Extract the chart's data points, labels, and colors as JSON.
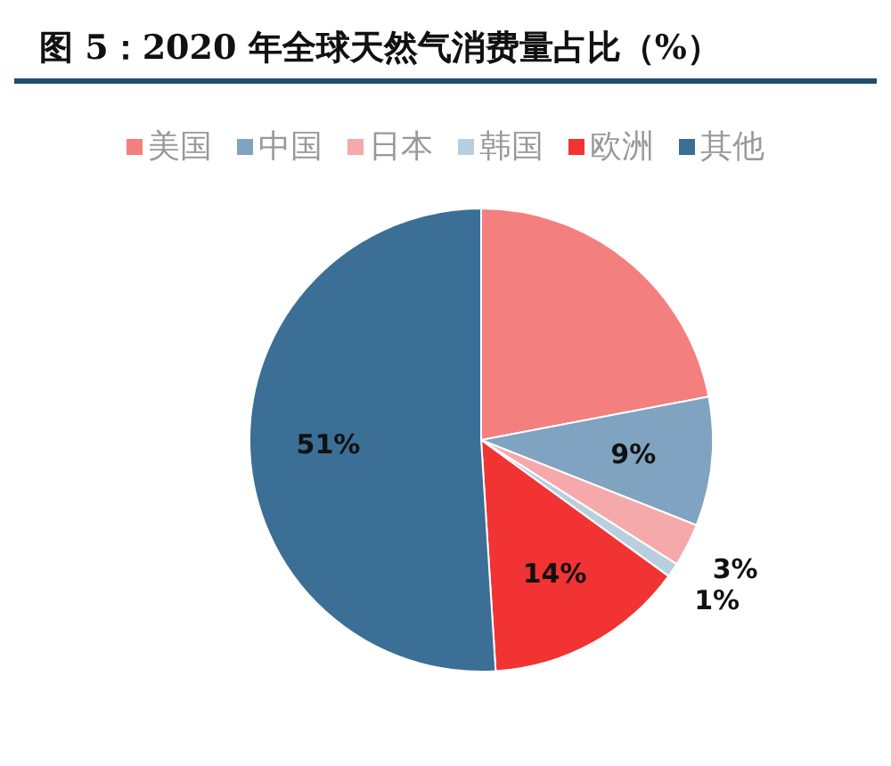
{
  "chart_data": {
    "type": "pie",
    "title": "图 5：2020 年全球天然气消费量占比（%）",
    "categories": [
      "美国",
      "中国",
      "日本",
      "韩国",
      "欧洲",
      "其他"
    ],
    "values": [
      22,
      9,
      3,
      1,
      14,
      51
    ],
    "colors": [
      "#f47f7f",
      "#7fa3c0",
      "#f6a9aa",
      "#b9cfe0",
      "#f23333",
      "#3b6f95"
    ],
    "value_labels": [
      null,
      "9%",
      "3%",
      "1%",
      "14%",
      "51%"
    ],
    "legend": "top"
  }
}
